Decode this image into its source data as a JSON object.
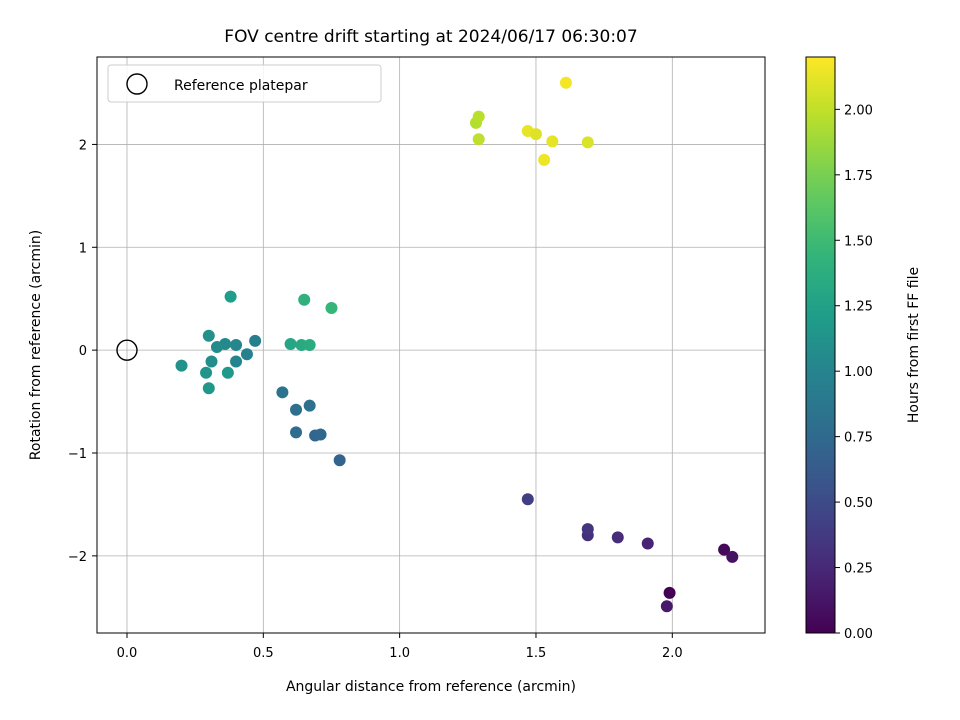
{
  "chart_data": {
    "type": "scatter",
    "title": "FOV centre drift starting at 2024/06/17 06:30:07",
    "xlabel": "Angular distance from reference (arcmin)",
    "ylabel": "Rotation from reference (arcmin)",
    "xlim": [
      -0.11,
      2.34
    ],
    "ylim": [
      -2.75,
      2.85
    ],
    "xticks": [
      0.0,
      0.5,
      1.0,
      1.5,
      2.0
    ],
    "xtick_labels": [
      "0.0",
      "0.5",
      "1.0",
      "1.5",
      "2.0"
    ],
    "yticks": [
      -2,
      -1,
      0,
      1,
      2
    ],
    "ytick_labels": [
      "−2",
      "−1",
      "0",
      "1",
      "2"
    ],
    "grid": true,
    "legend": {
      "location": "top-left",
      "entries": [
        "Reference platepar"
      ]
    },
    "reference_point": {
      "x": 0.0,
      "y": 0.0,
      "marker": "open-circle"
    },
    "colorbar": {
      "label": "Hours from first FF file",
      "colormap": "viridis",
      "range": [
        0.0,
        2.2
      ],
      "ticks": [
        0.0,
        0.25,
        0.5,
        0.75,
        1.0,
        1.25,
        1.5,
        1.75,
        2.0
      ],
      "tick_labels": [
        "0.00",
        "0.25",
        "0.50",
        "0.75",
        "1.00",
        "1.25",
        "1.50",
        "1.75",
        "2.00"
      ]
    },
    "points": [
      {
        "x": 1.99,
        "y": -2.36,
        "hours": 0.0
      },
      {
        "x": 2.19,
        "y": -1.94,
        "hours": 0.05
      },
      {
        "x": 2.22,
        "y": -2.01,
        "hours": 0.1
      },
      {
        "x": 1.98,
        "y": -2.49,
        "hours": 0.15
      },
      {
        "x": 1.91,
        "y": -1.88,
        "hours": 0.22
      },
      {
        "x": 1.8,
        "y": -1.82,
        "hours": 0.27
      },
      {
        "x": 1.69,
        "y": -1.8,
        "hours": 0.3
      },
      {
        "x": 1.69,
        "y": -1.74,
        "hours": 0.33
      },
      {
        "x": 1.47,
        "y": -1.45,
        "hours": 0.4
      },
      {
        "x": 0.78,
        "y": -1.07,
        "hours": 0.7
      },
      {
        "x": 0.69,
        "y": -0.83,
        "hours": 0.72
      },
      {
        "x": 0.71,
        "y": -0.82,
        "hours": 0.74
      },
      {
        "x": 0.62,
        "y": -0.8,
        "hours": 0.77
      },
      {
        "x": 0.62,
        "y": -0.58,
        "hours": 0.8
      },
      {
        "x": 0.67,
        "y": -0.54,
        "hours": 0.82
      },
      {
        "x": 0.57,
        "y": -0.41,
        "hours": 0.85
      },
      {
        "x": 0.47,
        "y": 0.09,
        "hours": 0.95
      },
      {
        "x": 0.44,
        "y": -0.04,
        "hours": 0.97
      },
      {
        "x": 0.4,
        "y": -0.11,
        "hours": 1.0
      },
      {
        "x": 0.4,
        "y": 0.05,
        "hours": 1.02
      },
      {
        "x": 0.36,
        "y": 0.06,
        "hours": 1.04
      },
      {
        "x": 0.33,
        "y": 0.03,
        "hours": 1.06
      },
      {
        "x": 0.31,
        "y": -0.11,
        "hours": 1.08
      },
      {
        "x": 0.3,
        "y": 0.14,
        "hours": 1.1
      },
      {
        "x": 0.2,
        "y": -0.15,
        "hours": 1.12
      },
      {
        "x": 0.29,
        "y": -0.22,
        "hours": 1.14
      },
      {
        "x": 0.3,
        "y": -0.37,
        "hours": 1.16
      },
      {
        "x": 0.37,
        "y": -0.22,
        "hours": 1.18
      },
      {
        "x": 0.38,
        "y": 0.52,
        "hours": 1.22
      },
      {
        "x": 0.6,
        "y": 0.06,
        "hours": 1.3
      },
      {
        "x": 0.64,
        "y": 0.05,
        "hours": 1.33
      },
      {
        "x": 0.67,
        "y": 0.05,
        "hours": 1.36
      },
      {
        "x": 0.65,
        "y": 0.49,
        "hours": 1.4
      },
      {
        "x": 0.75,
        "y": 0.41,
        "hours": 1.46
      },
      {
        "x": 1.28,
        "y": 2.21,
        "hours": 1.95
      },
      {
        "x": 1.29,
        "y": 2.27,
        "hours": 1.97
      },
      {
        "x": 1.29,
        "y": 2.05,
        "hours": 1.99
      },
      {
        "x": 1.47,
        "y": 2.13,
        "hours": 2.13
      },
      {
        "x": 1.5,
        "y": 2.1,
        "hours": 2.1
      },
      {
        "x": 1.53,
        "y": 1.85,
        "hours": 2.15
      },
      {
        "x": 1.56,
        "y": 2.03,
        "hours": 2.12
      },
      {
        "x": 1.61,
        "y": 2.6,
        "hours": 2.17
      },
      {
        "x": 1.69,
        "y": 2.02,
        "hours": 2.08
      }
    ]
  }
}
